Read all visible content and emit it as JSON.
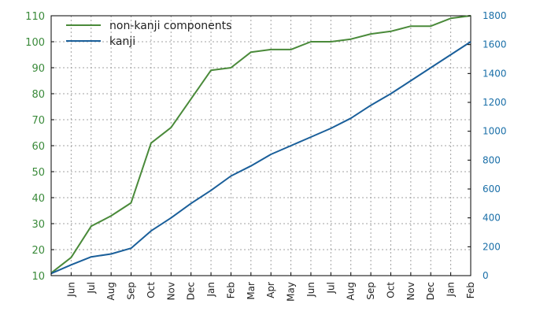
{
  "chart_data": {
    "type": "line",
    "categories": [
      "",
      "Jun",
      "Jul",
      "Aug",
      "Sep",
      "Oct",
      "Nov",
      "Dec",
      "Jan",
      "Feb",
      "Mar",
      "Apr",
      "May",
      "Jun",
      "Jul",
      "Aug",
      "Sep",
      "Oct",
      "Nov",
      "Dec",
      "Jan",
      "Feb"
    ],
    "y_left": {
      "range": [
        10,
        110
      ],
      "ticks": [
        10,
        20,
        30,
        40,
        50,
        60,
        70,
        80,
        90,
        100,
        110
      ]
    },
    "y_right": {
      "range": [
        0,
        1800
      ],
      "ticks": [
        0,
        200,
        400,
        600,
        800,
        1000,
        1200,
        1400,
        1600,
        1800
      ]
    },
    "grid": true,
    "legend": "top-left",
    "series": [
      {
        "name": "non-kanji components",
        "axis": "left",
        "color": "#4a8a3a",
        "values": [
          11,
          17,
          29,
          33,
          38,
          61,
          67,
          78,
          89,
          90,
          96,
          97,
          97,
          100,
          100,
          101,
          103,
          104,
          106,
          106,
          109,
          110
        ]
      },
      {
        "name": "kanji",
        "axis": "right",
        "color": "#1a5f9a",
        "values": [
          15,
          75,
          130,
          150,
          190,
          310,
          400,
          500,
          590,
          690,
          760,
          840,
          900,
          960,
          1020,
          1090,
          1180,
          1260,
          1350,
          1440,
          1530,
          1620
        ]
      }
    ]
  }
}
